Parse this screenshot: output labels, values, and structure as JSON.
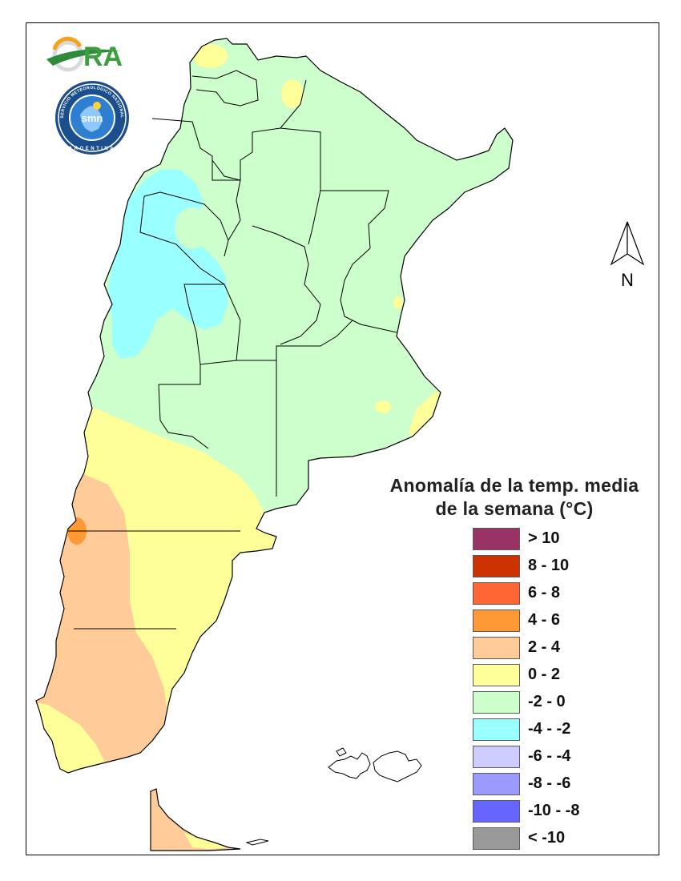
{
  "legend": {
    "title_line1": "Anomalía de la temp. media",
    "title_line2": "de la semana (°C)",
    "items": [
      {
        "label": "> 10",
        "color": "#993366"
      },
      {
        "label": "8 - 10",
        "color": "#cc3300"
      },
      {
        "label": "6 - 8",
        "color": "#ff6633"
      },
      {
        "label": "4 - 6",
        "color": "#ff9933"
      },
      {
        "label": "2 - 4",
        "color": "#ffcc99"
      },
      {
        "label": "0 - 2",
        "color": "#ffff99"
      },
      {
        "label": "-2 - 0",
        "color": "#ccffcc"
      },
      {
        "label": "-4 - -2",
        "color": "#99ffff"
      },
      {
        "label": "-6 - -4",
        "color": "#ccccff"
      },
      {
        "label": "-8 - -6",
        "color": "#9999ff"
      },
      {
        "label": "-10 - -8",
        "color": "#6666ff"
      },
      {
        "label": "< -10",
        "color": "#999999"
      }
    ]
  },
  "north_arrow": {
    "label": "N"
  },
  "logos": {
    "ora": "ORA",
    "smn_ring_text": "SERVICIO METEOROLÓGICO NACIONAL",
    "smn_bottom_text": "ARGENTINA",
    "smn_inner": "smn"
  },
  "colors": {
    "green": "#ccffcc",
    "cyan": "#99ffff",
    "yellow": "#ffff99",
    "peach": "#ffcc99",
    "orange": "#ff9933",
    "border": "#000000"
  }
}
